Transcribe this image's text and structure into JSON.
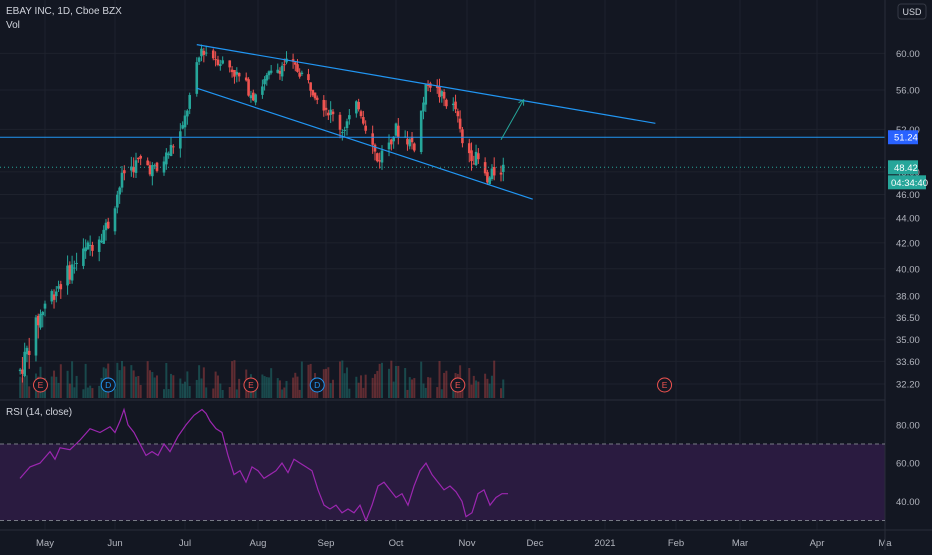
{
  "header": {
    "symbol": "EBAY INC, 1D, Cboe BZX",
    "volume_label": "Vol",
    "rsi_label": "RSI (14, close)",
    "currency": "USD"
  },
  "colors": {
    "background": "#131722",
    "up": "#26a69a",
    "down": "#ef5350",
    "trendline": "#2196f3",
    "rsi_line": "#9c27b0",
    "rsi_band": "#2a1b40",
    "grid": "#1e222d",
    "text": "#b2b5be"
  },
  "chart_data": {
    "type": "candlestick",
    "price_axis": {
      "ticks": [
        "60.00",
        "56.00",
        "52.00",
        "48.00",
        "46.00",
        "44.00",
        "42.00",
        "40.00",
        "38.00",
        "36.50",
        "35.00",
        "33.60",
        "32.20"
      ],
      "scale": "log"
    },
    "x_axis": {
      "ticks": [
        "May",
        "Jun",
        "Jul",
        "Aug",
        "Sep",
        "Oct",
        "Nov",
        "Dec",
        "2021",
        "Feb",
        "Mar",
        "Apr",
        "Ma"
      ]
    },
    "price_labels": {
      "level": "51.24",
      "last": "48.42",
      "countdown": "04:34:40"
    },
    "horizontal_level": 51.24,
    "trendlines": [
      {
        "from": [
          "2020-07-06",
          61.0
        ],
        "to": [
          "2021-01-23",
          52.6
        ]
      },
      {
        "from": [
          "2020-07-06",
          56.2
        ],
        "to": [
          "2020-11-30",
          45.6
        ]
      }
    ],
    "arrow": {
      "from": [
        "2020-11-16",
        51.0
      ],
      "to": [
        "2020-11-26",
        55.0
      ]
    },
    "events": [
      {
        "label": "E",
        "date": "2020-04-29"
      },
      {
        "label": "D",
        "date": "2020-05-29"
      },
      {
        "label": "E",
        "date": "2020-07-29"
      },
      {
        "label": "D",
        "date": "2020-08-28"
      },
      {
        "label": "E",
        "date": "2020-10-28"
      },
      {
        "label": "E",
        "date": "2021-01-27"
      }
    ],
    "rsi": {
      "levels": [
        "80.00",
        "60.00",
        "40.00"
      ],
      "overbought": 70,
      "oversold": 30,
      "points": [
        [
          20,
          52
        ],
        [
          30,
          58
        ],
        [
          40,
          60
        ],
        [
          50,
          66
        ],
        [
          55,
          62
        ],
        [
          60,
          68
        ],
        [
          70,
          67
        ],
        [
          80,
          72
        ],
        [
          90,
          78
        ],
        [
          100,
          76
        ],
        [
          110,
          79
        ],
        [
          115,
          76
        ],
        [
          120,
          82
        ],
        [
          124,
          88
        ],
        [
          128,
          80
        ],
        [
          134,
          76
        ],
        [
          140,
          70
        ],
        [
          146,
          64
        ],
        [
          152,
          66
        ],
        [
          158,
          64
        ],
        [
          164,
          70
        ],
        [
          170,
          66
        ],
        [
          178,
          74
        ],
        [
          186,
          80
        ],
        [
          194,
          85
        ],
        [
          202,
          88
        ],
        [
          206,
          86
        ],
        [
          210,
          82
        ],
        [
          216,
          78
        ],
        [
          222,
          76
        ],
        [
          228,
          64
        ],
        [
          234,
          54
        ],
        [
          240,
          56
        ],
        [
          246,
          50
        ],
        [
          252,
          58
        ],
        [
          258,
          56
        ],
        [
          264,
          52
        ],
        [
          270,
          54
        ],
        [
          276,
          56
        ],
        [
          282,
          60
        ],
        [
          288,
          55
        ],
        [
          294,
          62
        ],
        [
          300,
          60
        ],
        [
          306,
          58
        ],
        [
          312,
          56
        ],
        [
          318,
          46
        ],
        [
          324,
          38
        ],
        [
          330,
          36
        ],
        [
          336,
          38
        ],
        [
          342,
          34
        ],
        [
          348,
          36
        ],
        [
          354,
          34
        ],
        [
          360,
          38
        ],
        [
          366,
          30
        ],
        [
          372,
          38
        ],
        [
          378,
          48
        ],
        [
          384,
          50
        ],
        [
          390,
          46
        ],
        [
          396,
          42
        ],
        [
          402,
          44
        ],
        [
          408,
          38
        ],
        [
          414,
          48
        ],
        [
          420,
          56
        ],
        [
          426,
          60
        ],
        [
          432,
          54
        ],
        [
          438,
          50
        ],
        [
          444,
          46
        ],
        [
          450,
          48
        ],
        [
          456,
          45
        ],
        [
          462,
          40
        ],
        [
          466,
          32
        ],
        [
          472,
          34
        ],
        [
          478,
          44
        ],
        [
          484,
          46
        ],
        [
          490,
          38
        ],
        [
          496,
          42
        ],
        [
          502,
          44
        ],
        [
          508,
          44
        ]
      ]
    },
    "volume_note": "volume bars"
  }
}
